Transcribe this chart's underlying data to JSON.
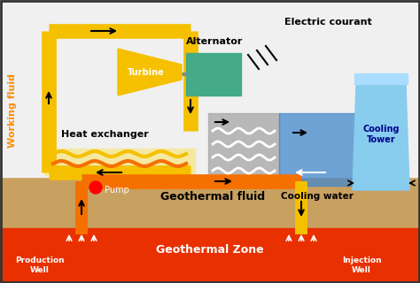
{
  "bg_color": "#f0f0f0",
  "ground_color": "#c8a060",
  "geothermal_zone_color": "#e83000",
  "working_fluid_color": "#f5c000",
  "geothermal_fluid_color": "#f57000",
  "cooling_water_color": "#4488cc",
  "turbine_color": "#f5c000",
  "alternator_color": "#44aa88",
  "heat_exchanger_bg": "#f5e8a0",
  "cooling_tower_color": "#88ccee",
  "gray_color": "#aaaaaa",
  "labels": {
    "working_fluid": "Working fluid",
    "heat_exchanger": "Heat exchanger",
    "geothermal_fluid": "Geothermal fluid",
    "geothermal_zone": "Geothermal Zone",
    "production_well": "Production\nWell",
    "injection_well": "Injection\nWell",
    "pump": "Pump",
    "turbine": "Turbine",
    "alternator": "Alternator",
    "electric_courant": "Electric courant",
    "cooling_tower": "Cooling\nTower",
    "cooling_water": "Cooling water"
  }
}
